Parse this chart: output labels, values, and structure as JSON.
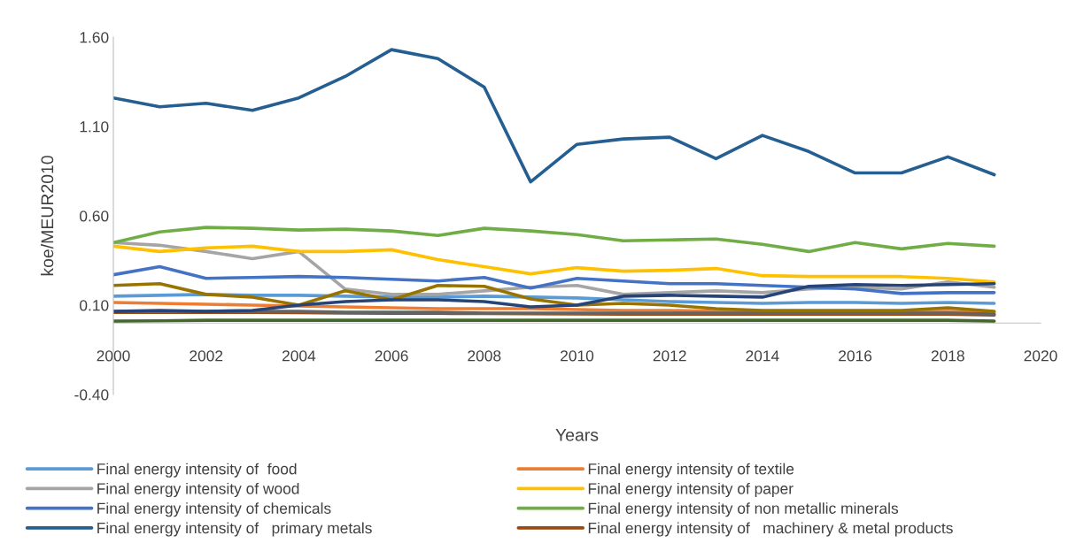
{
  "chart_data": {
    "type": "line",
    "xlabel": "Years",
    "ylabel": "koe/MEUR2010",
    "x": [
      2000,
      2001,
      2002,
      2003,
      2004,
      2005,
      2006,
      2007,
      2008,
      2009,
      2010,
      2011,
      2012,
      2013,
      2014,
      2015,
      2016,
      2017,
      2018,
      2019
    ],
    "xlim": [
      2000,
      2020
    ],
    "xticks": [
      2000,
      2002,
      2004,
      2006,
      2008,
      2010,
      2012,
      2014,
      2016,
      2018,
      2020
    ],
    "ylim": [
      -0.4,
      1.6
    ],
    "yticks": [
      {
        "value": -0.4,
        "label": "-0.40"
      },
      {
        "value": 0.1,
        "label": "0.10"
      },
      {
        "value": 0.6,
        "label": "0.60"
      },
      {
        "value": 1.1,
        "label": "1.10"
      },
      {
        "value": 1.6,
        "label": "1.60"
      }
    ],
    "grid": false,
    "legend": "bottom",
    "line_style": "solid",
    "marker": "none",
    "series": [
      {
        "name": "Final energy intensity of  food",
        "color": "#5b9bd5",
        "values": [
          0.15,
          0.155,
          0.16,
          0.155,
          0.155,
          0.15,
          0.145,
          0.145,
          0.15,
          0.145,
          0.14,
          0.13,
          0.12,
          0.115,
          0.11,
          0.115,
          0.115,
          0.11,
          0.115,
          0.11
        ]
      },
      {
        "name": "Final energy intensity of textile",
        "color": "#ed7d31",
        "values": [
          0.115,
          0.11,
          0.105,
          0.1,
          0.095,
          0.09,
          0.085,
          0.08,
          0.08,
          0.08,
          0.075,
          0.07,
          0.07,
          0.065,
          0.065,
          0.065,
          0.065,
          0.065,
          0.065,
          0.06
        ]
      },
      {
        "name": "Final energy intensity of wood",
        "color": "#a5a5a5",
        "values": [
          0.45,
          0.435,
          0.4,
          0.36,
          0.4,
          0.19,
          0.16,
          0.16,
          0.18,
          0.2,
          0.21,
          0.16,
          0.17,
          0.18,
          0.17,
          0.19,
          0.2,
          0.19,
          0.23,
          0.2
        ]
      },
      {
        "name": "Final energy intensity of paper",
        "color": "#ffc000",
        "values": [
          0.43,
          0.4,
          0.42,
          0.43,
          0.4,
          0.4,
          0.41,
          0.355,
          0.315,
          0.275,
          0.31,
          0.29,
          0.295,
          0.305,
          0.265,
          0.26,
          0.26,
          0.26,
          0.25,
          0.23
        ]
      },
      {
        "name": "Final energy intensity of chemicals",
        "color": "#4472c4",
        "values": [
          0.27,
          0.315,
          0.25,
          0.255,
          0.26,
          0.255,
          0.245,
          0.235,
          0.255,
          0.195,
          0.25,
          0.235,
          0.22,
          0.22,
          0.21,
          0.2,
          0.19,
          0.165,
          0.17,
          0.17
        ]
      },
      {
        "name": "Final energy intensity of non metallic minerals",
        "color": "#70ad47",
        "values": [
          0.45,
          0.51,
          0.535,
          0.53,
          0.52,
          0.525,
          0.515,
          0.49,
          0.53,
          0.515,
          0.495,
          0.46,
          0.465,
          0.47,
          0.44,
          0.4,
          0.45,
          0.415,
          0.445,
          0.43
        ]
      },
      {
        "name": "Final energy intensity of   primary metals",
        "color": "#255e91",
        "values": [
          1.26,
          1.21,
          1.23,
          1.19,
          1.26,
          1.38,
          1.53,
          1.48,
          1.32,
          0.79,
          1.0,
          1.03,
          1.04,
          0.92,
          1.05,
          0.96,
          0.84,
          0.84,
          0.93,
          0.83
        ]
      },
      {
        "name": "Final energy intensity of   machinery & metal products",
        "color": "#9e480e",
        "values": [
          0.06,
          0.06,
          0.06,
          0.06,
          0.058,
          0.056,
          0.055,
          0.054,
          0.053,
          0.052,
          0.051,
          0.05,
          0.05,
          0.05,
          0.05,
          0.05,
          0.05,
          0.05,
          0.05,
          0.045
        ]
      },
      {
        "color": "#636363",
        "values": [
          0.065,
          0.065,
          0.065,
          0.065,
          0.065,
          0.06,
          0.06,
          0.06,
          0.055,
          0.055,
          0.055,
          0.055,
          0.055,
          0.055,
          0.055,
          0.055,
          0.055,
          0.055,
          0.055,
          0.05
        ]
      },
      {
        "color": "#997300",
        "values": [
          0.21,
          0.22,
          0.16,
          0.145,
          0.1,
          0.18,
          0.13,
          0.21,
          0.205,
          0.135,
          0.1,
          0.11,
          0.1,
          0.08,
          0.07,
          0.07,
          0.07,
          0.07,
          0.085,
          0.065
        ]
      },
      {
        "color": "#264478",
        "values": [
          0.065,
          0.07,
          0.065,
          0.07,
          0.1,
          0.12,
          0.13,
          0.13,
          0.12,
          0.09,
          0.1,
          0.15,
          0.155,
          0.15,
          0.145,
          0.205,
          0.215,
          0.21,
          0.215,
          0.22
        ]
      },
      {
        "color": "#43682b",
        "values": [
          0.01,
          0.012,
          0.015,
          0.015,
          0.015,
          0.015,
          0.015,
          0.015,
          0.015,
          0.015,
          0.015,
          0.015,
          0.015,
          0.015,
          0.015,
          0.015,
          0.015,
          0.015,
          0.015,
          0.01
        ]
      }
    ]
  }
}
